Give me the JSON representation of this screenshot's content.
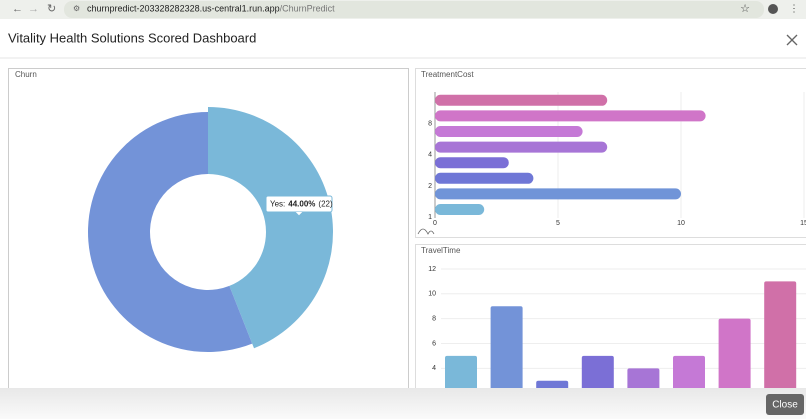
{
  "browser": {
    "url_host": "churnpredict-203328282328.us-central1.run.app",
    "url_path": "/ChurnPredict"
  },
  "dialog": {
    "title": "Vitality Health Solutions Scored Dashboard",
    "close_button": "Close"
  },
  "chart_data": [
    {
      "type": "pie",
      "title": "Churn",
      "donut": true,
      "values": [
        22,
        28
      ],
      "colors": [
        "#7ab8d9",
        "#7393d8"
      ],
      "tooltip": {
        "label": "Yes:",
        "percent": "44.00%",
        "count": "(22)"
      }
    },
    {
      "type": "bar",
      "orientation": "horizontal",
      "title": "TreatmentCost",
      "categories": [
        null,
        "8",
        null,
        "4",
        null,
        "2",
        null,
        "1"
      ],
      "values": [
        7,
        11,
        6,
        7,
        3,
        4,
        10,
        2
      ],
      "colors": [
        "#d070a8",
        "#d075c8",
        "#c579d6",
        "#a775d6",
        "#7b6fd6",
        "#6f77d6",
        "#7094d8",
        "#7ab8d9"
      ],
      "xlim": [
        0,
        15
      ],
      "xticks": [
        0,
        5,
        10,
        15
      ],
      "grid": true
    },
    {
      "type": "bar",
      "orientation": "vertical",
      "title": "TravelTime",
      "values": [
        5,
        9,
        3,
        5,
        4,
        5,
        8,
        11
      ],
      "colors": [
        "#7ab8d9",
        "#7393d8",
        "#6f77d6",
        "#7b6fd6",
        "#a775d6",
        "#c579d6",
        "#d075c8",
        "#d070a8"
      ],
      "ylim": [
        0,
        12
      ],
      "yticks": [
        4,
        6,
        8,
        10,
        12
      ],
      "grid": true
    }
  ]
}
